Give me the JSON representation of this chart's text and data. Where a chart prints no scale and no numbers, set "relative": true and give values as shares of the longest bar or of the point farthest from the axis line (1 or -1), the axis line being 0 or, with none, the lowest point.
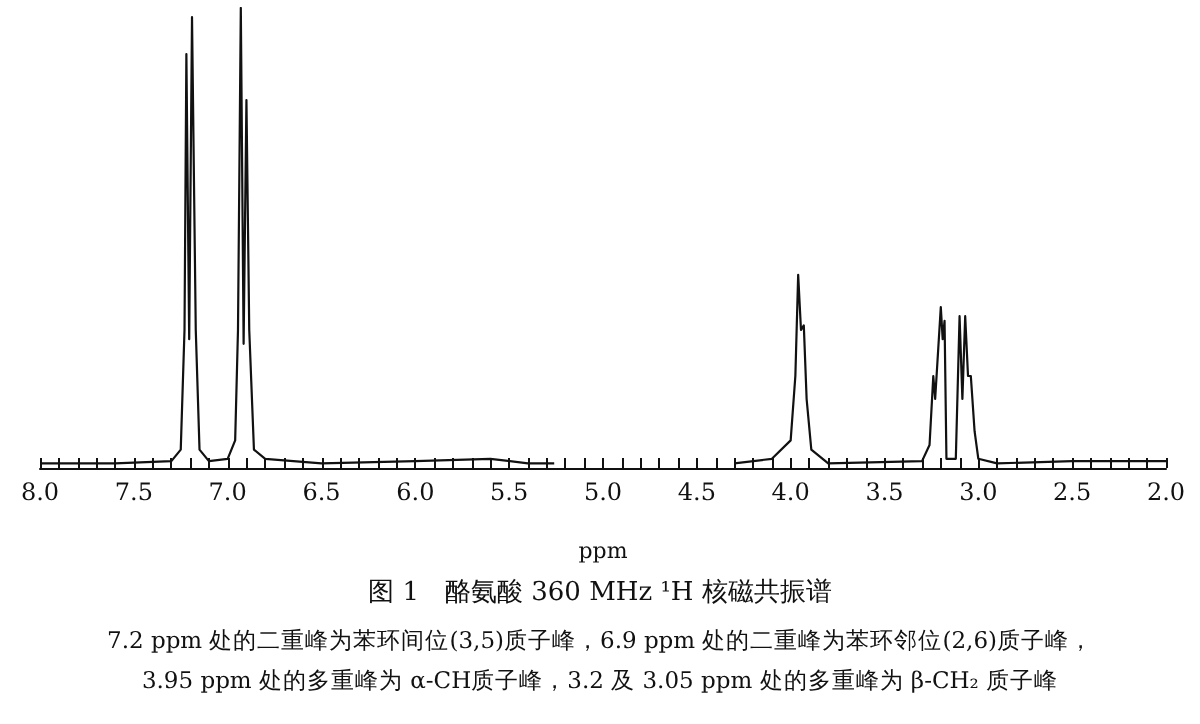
{
  "chart_data": {
    "type": "line",
    "relative": true,
    "title": "图 1　酪氨酸 360 MHz ¹H 核磁共振谱",
    "xlabel": "ppm",
    "marker": "none",
    "annotations": [
      "7.2 ppm 处的二重峰为苯环间位(3,5)质子峰，6.9 ppm 处的二重峰为苯环邻位(2,6)质子峰，",
      "3.95 ppm 处的多重峰为 α-CH质子峰，3.2 及 3.05 ppm 处的多重峰为 β-CH₂ 质子峰"
    ],
    "xlim": [
      8.0,
      2.0
    ],
    "xticks": [
      {
        "value": 8.0,
        "label": "8.0"
      },
      {
        "value": 7.9,
        "label": null
      },
      {
        "value": 7.8,
        "label": null
      },
      {
        "value": 7.7,
        "label": null
      },
      {
        "value": 7.6,
        "label": null
      },
      {
        "value": 7.5,
        "label": "7.5"
      },
      {
        "value": 7.4,
        "label": null
      },
      {
        "value": 7.3,
        "label": null
      },
      {
        "value": 7.2,
        "label": null
      },
      {
        "value": 7.1,
        "label": null
      },
      {
        "value": 7.0,
        "label": "7.0"
      },
      {
        "value": 6.9,
        "label": null
      },
      {
        "value": 6.8,
        "label": null
      },
      {
        "value": 6.7,
        "label": null
      },
      {
        "value": 6.6,
        "label": null
      },
      {
        "value": 6.5,
        "label": "6.5"
      },
      {
        "value": 6.4,
        "label": null
      },
      {
        "value": 6.3,
        "label": null
      },
      {
        "value": 6.2,
        "label": null
      },
      {
        "value": 6.1,
        "label": null
      },
      {
        "value": 6.0,
        "label": "6.0"
      },
      {
        "value": 5.9,
        "label": null
      },
      {
        "value": 5.8,
        "label": null
      },
      {
        "value": 5.7,
        "label": null
      },
      {
        "value": 5.6,
        "label": null
      },
      {
        "value": 5.5,
        "label": "5.5"
      },
      {
        "value": 5.4,
        "label": null
      },
      {
        "value": 5.3,
        "label": null
      },
      {
        "value": 5.2,
        "label": null
      },
      {
        "value": 5.1,
        "label": null
      },
      {
        "value": 5.0,
        "label": "5.0"
      },
      {
        "value": 4.9,
        "label": null
      },
      {
        "value": 4.8,
        "label": null
      },
      {
        "value": 4.7,
        "label": null
      },
      {
        "value": 4.6,
        "label": null
      },
      {
        "value": 4.5,
        "label": "4.5"
      },
      {
        "value": 4.4,
        "label": null
      },
      {
        "value": 4.3,
        "label": null
      },
      {
        "value": 4.2,
        "label": null
      },
      {
        "value": 4.1,
        "label": null
      },
      {
        "value": 4.0,
        "label": "4.0"
      },
      {
        "value": 3.9,
        "label": null
      },
      {
        "value": 3.8,
        "label": null
      },
      {
        "value": 3.7,
        "label": null
      },
      {
        "value": 3.6,
        "label": null
      },
      {
        "value": 3.5,
        "label": "3.5"
      },
      {
        "value": 3.4,
        "label": null
      },
      {
        "value": 3.3,
        "label": null
      },
      {
        "value": 3.2,
        "label": null
      },
      {
        "value": 3.1,
        "label": null
      },
      {
        "value": 3.0,
        "label": "3.0"
      },
      {
        "value": 2.9,
        "label": null
      },
      {
        "value": 2.8,
        "label": null
      },
      {
        "value": 2.7,
        "label": null
      },
      {
        "value": 2.6,
        "label": null
      },
      {
        "value": 2.5,
        "label": "2.5"
      },
      {
        "value": 2.4,
        "label": null
      },
      {
        "value": 2.3,
        "label": null
      },
      {
        "value": 2.2,
        "label": null
      },
      {
        "value": 2.1,
        "label": null
      },
      {
        "value": 2.0,
        "label": "2.0"
      }
    ],
    "series": [
      {
        "color": "#111111",
        "x": [
          8.0,
          7.6,
          7.3,
          7.25,
          7.23,
          7.22,
          7.205,
          7.19,
          7.17,
          7.15,
          7.1,
          7.0,
          6.96,
          6.945,
          6.93,
          6.915,
          6.9,
          6.885,
          6.86,
          6.8,
          6.5,
          6.0,
          5.6,
          5.4,
          5.26,
          4.8,
          4.3,
          4.1,
          4.0,
          3.975,
          3.96,
          3.945,
          3.93,
          3.915,
          3.89,
          3.8,
          3.3,
          3.26,
          3.24,
          3.23,
          3.2,
          3.19,
          3.18,
          3.17,
          3.12,
          3.1,
          3.085,
          3.07,
          3.055,
          3.04,
          3.02,
          3.0,
          2.9,
          2.5,
          2.0
        ],
        "values": [
          0.01,
          0.01,
          0.015,
          0.04,
          0.3,
          0.9,
          0.28,
          0.98,
          0.3,
          0.04,
          0.015,
          0.02,
          0.06,
          0.3,
          1.0,
          0.27,
          0.8,
          0.3,
          0.04,
          0.02,
          0.01,
          0.015,
          0.02,
          0.01,
          0.01,
          null,
          0.01,
          0.02,
          0.06,
          0.2,
          0.42,
          0.3,
          0.31,
          0.15,
          0.04,
          0.01,
          0.015,
          0.05,
          0.2,
          0.15,
          0.35,
          0.28,
          0.32,
          0.02,
          0.02,
          0.33,
          0.15,
          0.33,
          0.2,
          0.2,
          0.08,
          0.02,
          0.01,
          0.015,
          0.015
        ]
      }
    ]
  }
}
